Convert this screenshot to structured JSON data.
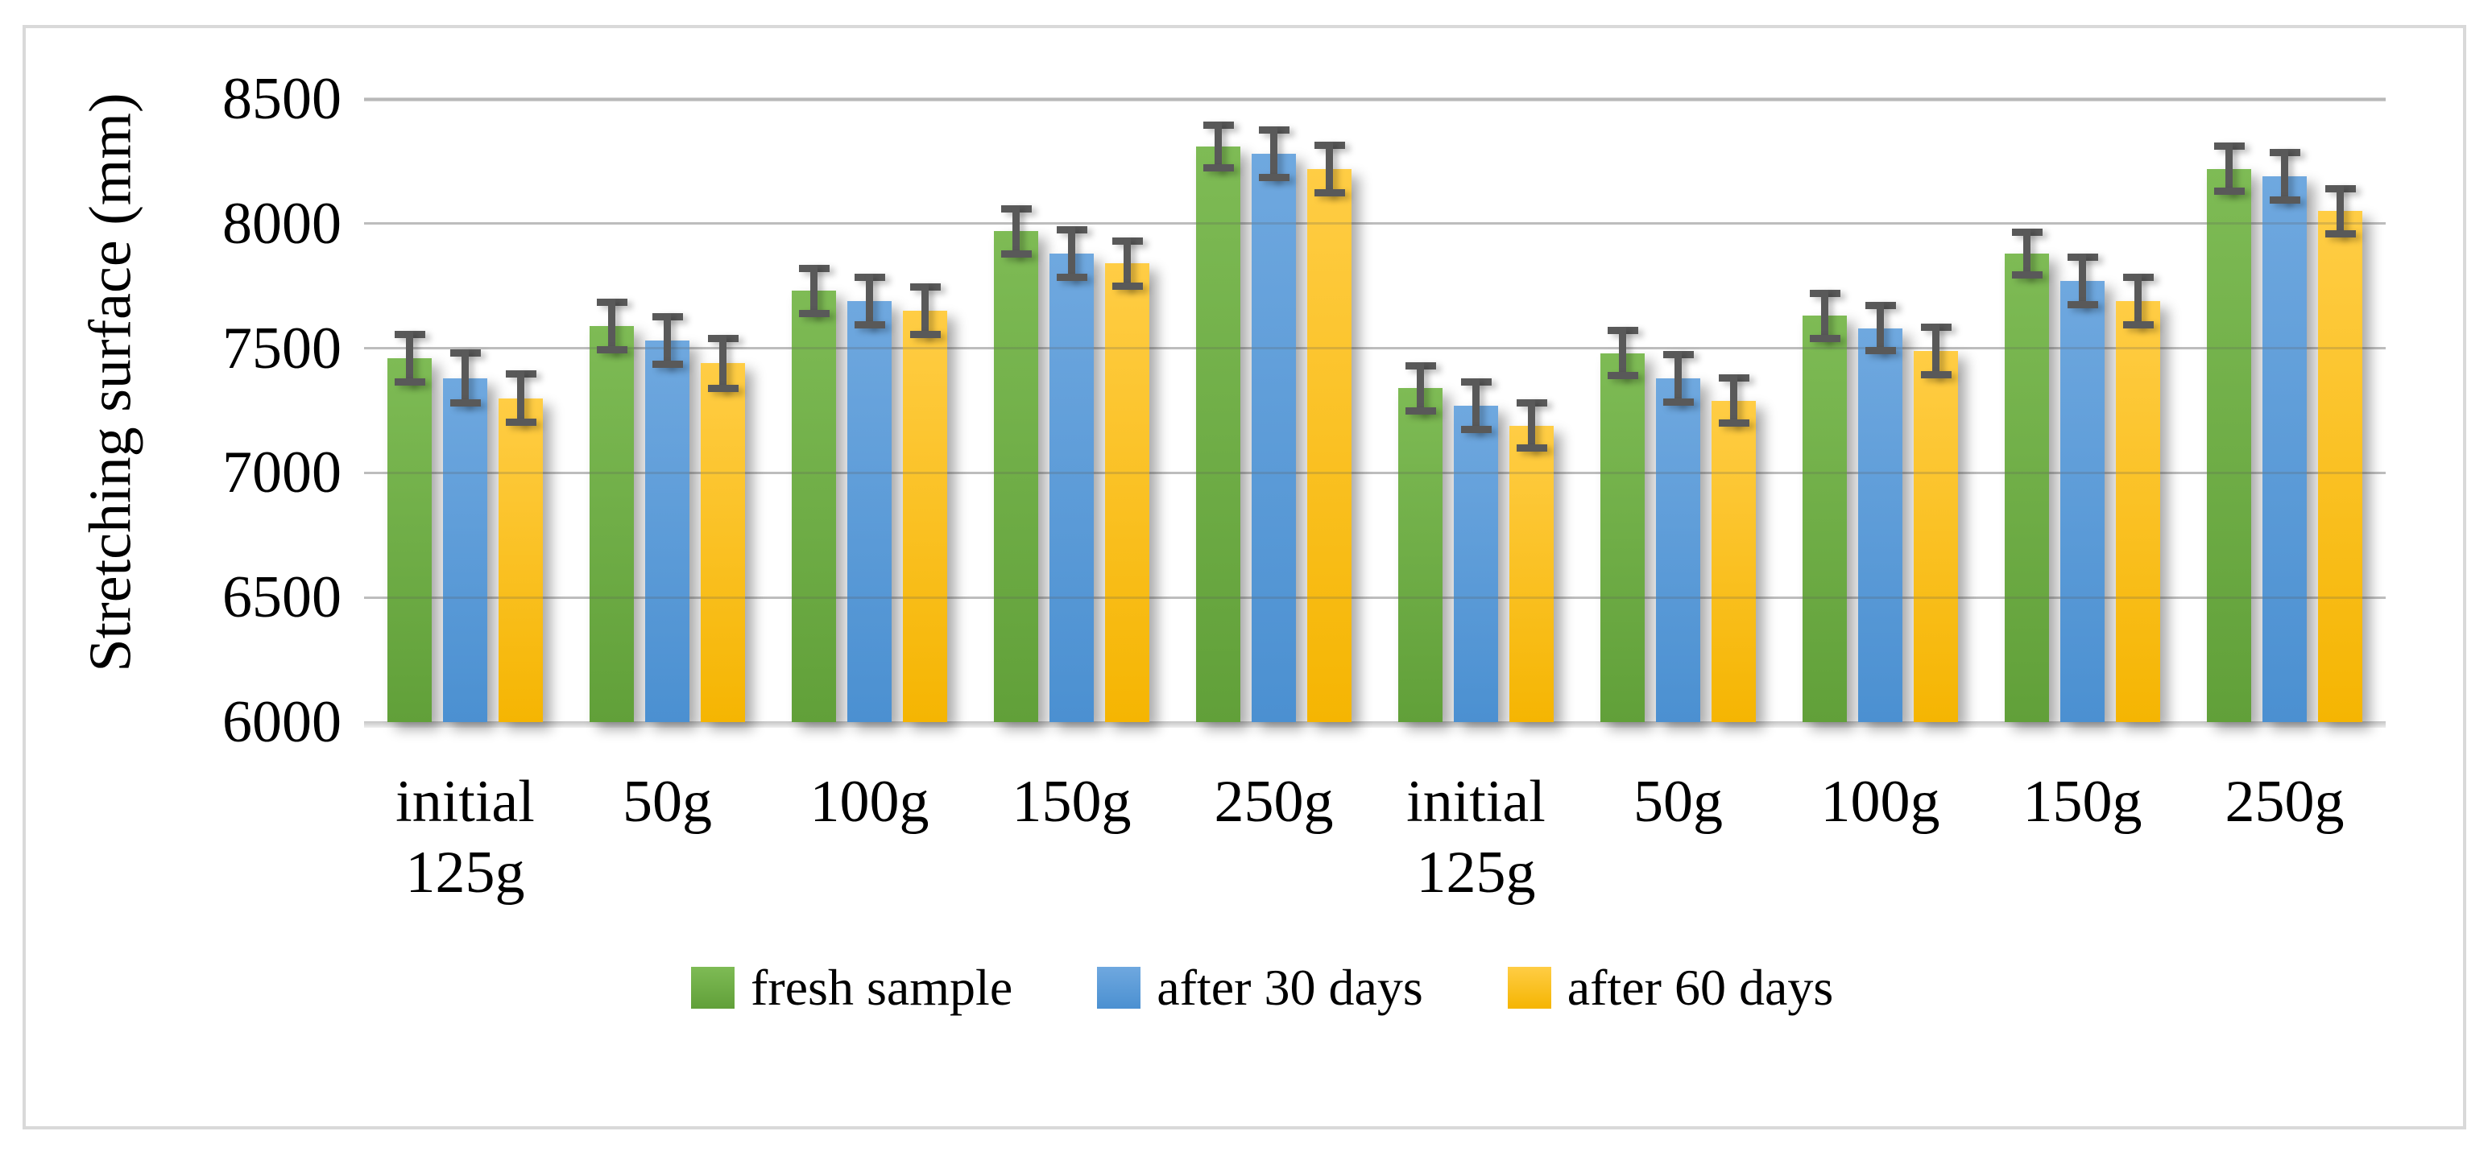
{
  "chart_data": {
    "type": "bar",
    "title": "",
    "xlabel": "",
    "ylabel": "Stretching surface (mm)",
    "ylim": [
      6000,
      8500
    ],
    "ytick_step": 500,
    "yticks": [
      8500,
      8000,
      7500,
      7000,
      6500,
      6000
    ],
    "grid": true,
    "legend_position": "bottom",
    "categories": [
      [
        "initial",
        "125g"
      ],
      [
        "50g"
      ],
      [
        "100g"
      ],
      [
        "150g"
      ],
      [
        "250g"
      ],
      [
        "initial",
        "125g"
      ],
      [
        "50g"
      ],
      [
        "100g"
      ],
      [
        "150g"
      ],
      [
        "250g"
      ]
    ],
    "series": [
      {
        "name": "fresh sample",
        "color": "#70AD47",
        "values": [
          7460,
          7590,
          7730,
          7970,
          8310,
          7340,
          7480,
          7630,
          7880,
          8220
        ],
        "errors": [
          110,
          110,
          105,
          105,
          100,
          105,
          105,
          105,
          100,
          105
        ]
      },
      {
        "name": "after 30 days",
        "color": "#5B9BD5",
        "values": [
          7380,
          7530,
          7690,
          7880,
          8280,
          7270,
          7380,
          7580,
          7770,
          8190
        ],
        "errors": [
          115,
          110,
          110,
          110,
          110,
          110,
          110,
          105,
          110,
          110
        ]
      },
      {
        "name": "after 60 days",
        "color": "#FFC000",
        "values": [
          7300,
          7440,
          7650,
          7840,
          8220,
          7190,
          7290,
          7490,
          7690,
          8050
        ],
        "errors": [
          110,
          115,
          110,
          105,
          110,
          105,
          105,
          110,
          110,
          105
        ]
      }
    ],
    "error_bar_color": "#595959",
    "gridline_color": "#D9D9D9",
    "frame_border_color": "#D9D9D9"
  }
}
